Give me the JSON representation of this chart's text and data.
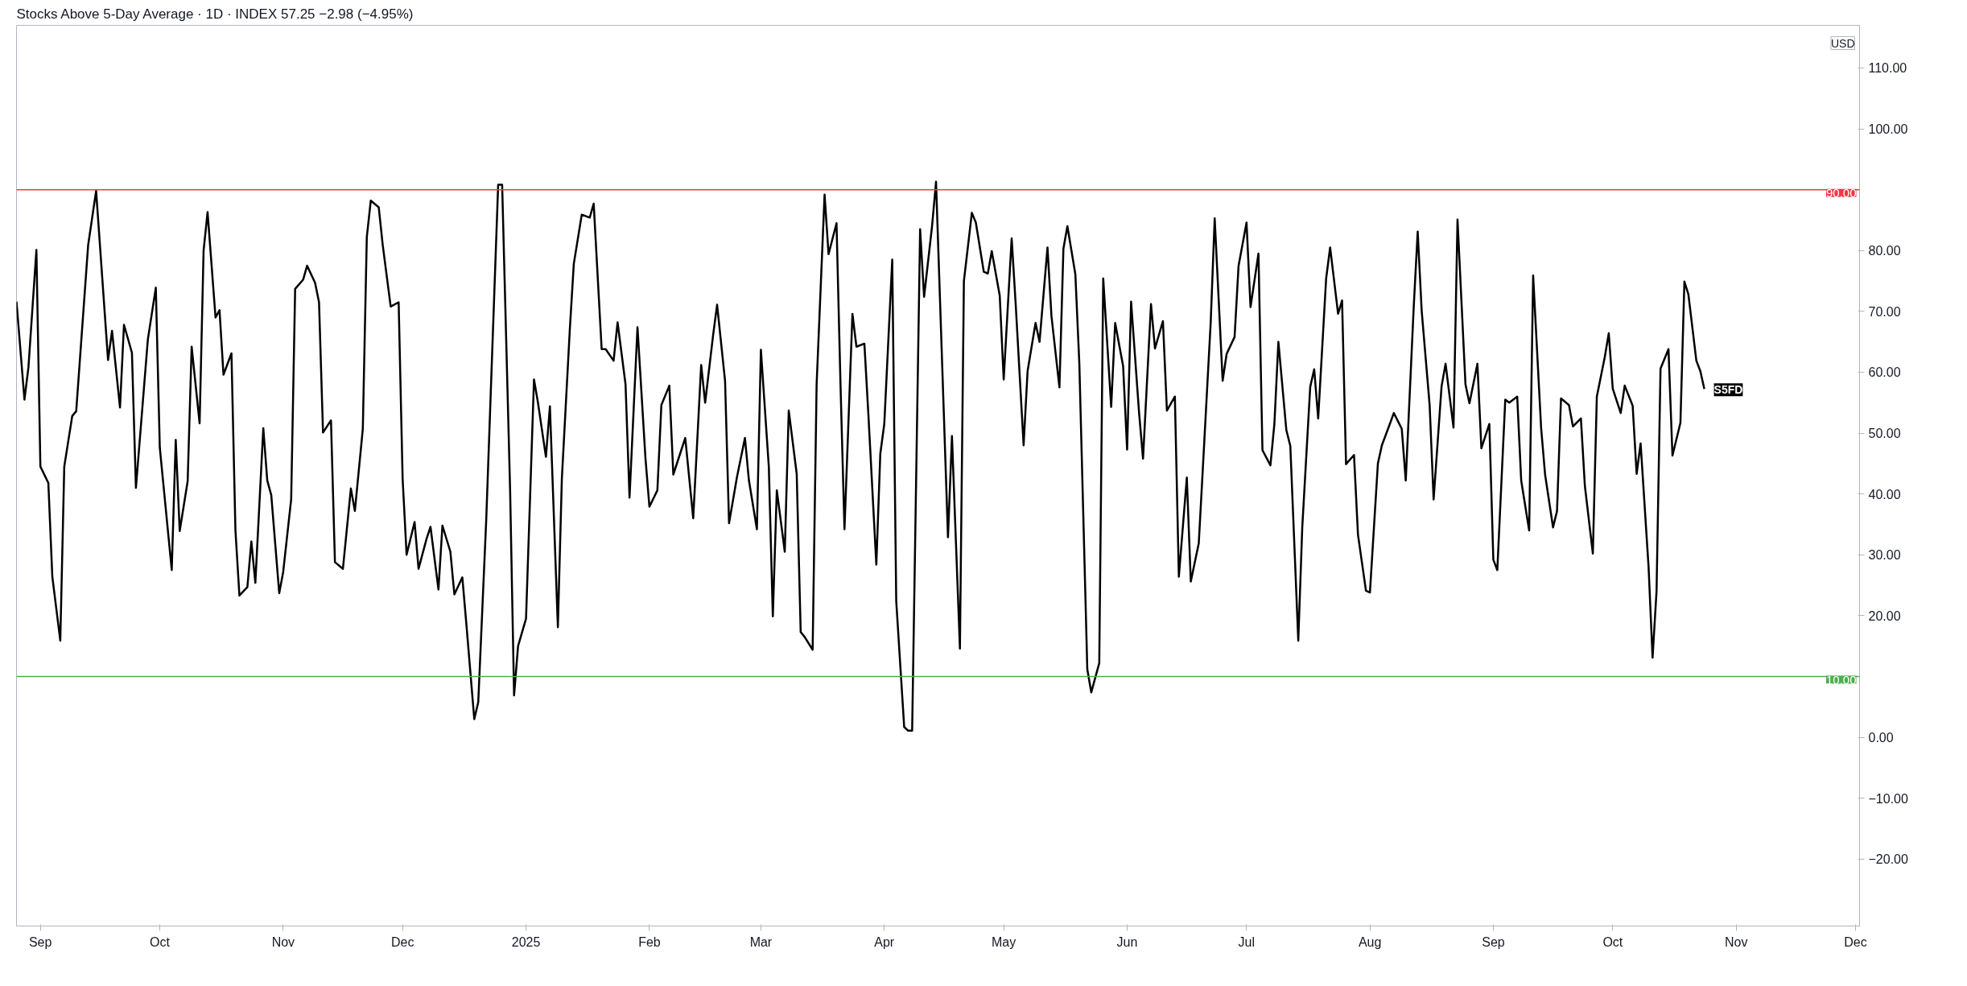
{
  "chart_data": {
    "type": "line",
    "title": "Stocks Above 5-Day Average · 1D · INDEX 57.25 −2.98 (−4.95%)",
    "annotations": [
      "USD",
      {
        "text": "S5FD",
        "x": "2025-10-24",
        "y": 57.25
      }
    ],
    "xlim": [
      "2024-08-26",
      "2025-12-02"
    ],
    "xticks": [
      {
        "value": "2024-09-01",
        "label": "Sep"
      },
      {
        "value": "2024-10-01",
        "label": "Oct"
      },
      {
        "value": "2024-11-01",
        "label": "Nov"
      },
      {
        "value": "2024-12-01",
        "label": "Dec"
      },
      {
        "value": "2025-01-01",
        "label": "2025"
      },
      {
        "value": "2025-02-01",
        "label": "Feb"
      },
      {
        "value": "2025-03-01",
        "label": "Mar"
      },
      {
        "value": "2025-04-01",
        "label": "Apr"
      },
      {
        "value": "2025-05-01",
        "label": "May"
      },
      {
        "value": "2025-06-01",
        "label": "Jun"
      },
      {
        "value": "2025-07-01",
        "label": "Jul"
      },
      {
        "value": "2025-08-01",
        "label": "Aug"
      },
      {
        "value": "2025-09-01",
        "label": "Sep"
      },
      {
        "value": "2025-10-01",
        "label": "Oct"
      },
      {
        "value": "2025-11-01",
        "label": "Nov"
      },
      {
        "value": "2025-12-01",
        "label": "Dec"
      }
    ],
    "ylim": [
      -31,
      117
    ],
    "yticks": [
      {
        "value": -20,
        "label": "−20.00"
      },
      {
        "value": -10,
        "label": "−10.00"
      },
      {
        "value": 0,
        "label": "0.00"
      },
      {
        "value": 20,
        "label": "20.00"
      },
      {
        "value": 30,
        "label": "30.00"
      },
      {
        "value": 40,
        "label": "40.00"
      },
      {
        "value": 50,
        "label": "50.00"
      },
      {
        "value": 60,
        "label": "60.00"
      },
      {
        "value": 70,
        "label": "70.00"
      },
      {
        "value": 80,
        "label": "80.00"
      },
      {
        "value": 100,
        "label": "100.00"
      },
      {
        "value": 110,
        "label": "110.00"
      }
    ],
    "ref_lines": [
      {
        "axis": "y",
        "value": 90,
        "label": "90.00",
        "color": "#f23645"
      },
      {
        "axis": "y",
        "value": 10,
        "label": "10.00",
        "color": "#4caf50"
      }
    ],
    "grid": false,
    "line_style": "solid",
    "x": [
      "2024-08-26",
      "2024-08-28",
      "2024-08-29",
      "2024-08-31",
      "2024-09-01",
      "2024-09-03",
      "2024-09-04",
      "2024-09-06",
      "2024-09-07",
      "2024-09-09",
      "2024-09-10",
      "2024-09-13",
      "2024-09-15",
      "2024-09-18",
      "2024-09-19",
      "2024-09-21",
      "2024-09-22",
      "2024-09-24",
      "2024-09-25",
      "2024-09-28",
      "2024-09-30",
      "2024-10-01",
      "2024-10-04",
      "2024-10-05",
      "2024-10-06",
      "2024-10-08",
      "2024-10-09",
      "2024-10-11",
      "2024-10-12",
      "2024-10-13",
      "2024-10-15",
      "2024-10-16",
      "2024-10-17",
      "2024-10-19",
      "2024-10-20",
      "2024-10-21",
      "2024-10-23",
      "2024-10-24",
      "2024-10-25",
      "2024-10-27",
      "2024-10-28",
      "2024-10-29",
      "2024-10-31",
      "2024-11-01",
      "2024-11-03",
      "2024-11-04",
      "2024-11-06",
      "2024-11-07",
      "2024-11-09",
      "2024-11-10",
      "2024-11-11",
      "2024-11-13",
      "2024-11-14",
      "2024-11-16",
      "2024-11-18",
      "2024-11-19",
      "2024-11-21",
      "2024-11-22",
      "2024-11-23",
      "2024-11-25",
      "2024-11-26",
      "2024-11-28",
      "2024-11-30",
      "2024-12-01",
      "2024-12-02",
      "2024-12-04",
      "2024-12-05",
      "2024-12-07",
      "2024-12-08",
      "2024-12-10",
      "2024-12-11",
      "2024-12-13",
      "2024-12-14",
      "2024-12-16",
      "2024-12-17",
      "2024-12-19",
      "2024-12-20",
      "2024-12-22",
      "2024-12-25",
      "2024-12-26",
      "2024-12-28",
      "2024-12-29",
      "2024-12-30",
      "2025-01-01",
      "2025-01-03",
      "2025-01-04",
      "2025-01-06",
      "2025-01-07",
      "2025-01-09",
      "2025-01-10",
      "2025-01-12",
      "2025-01-13",
      "2025-01-15",
      "2025-01-17",
      "2025-01-18",
      "2025-01-20",
      "2025-01-21",
      "2025-01-23",
      "2025-01-24",
      "2025-01-26",
      "2025-01-27",
      "2025-01-29",
      "2025-01-31",
      "2025-02-01",
      "2025-02-03",
      "2025-02-04",
      "2025-02-06",
      "2025-02-07",
      "2025-02-09",
      "2025-02-10",
      "2025-02-12",
      "2025-02-14",
      "2025-02-15",
      "2025-02-17",
      "2025-02-18",
      "2025-02-20",
      "2025-02-21",
      "2025-02-23",
      "2025-02-25",
      "2025-02-26",
      "2025-02-28",
      "2025-03-01",
      "2025-03-03",
      "2025-03-04",
      "2025-03-05",
      "2025-03-07",
      "2025-03-08",
      "2025-03-10",
      "2025-03-11",
      "2025-03-12",
      "2025-03-14",
      "2025-03-15",
      "2025-03-17",
      "2025-03-18",
      "2025-03-20",
      "2025-03-21",
      "2025-03-22",
      "2025-03-24",
      "2025-03-25",
      "2025-03-27",
      "2025-03-28",
      "2025-03-30",
      "2025-03-31",
      "2025-04-01",
      "2025-04-03",
      "2025-04-04",
      "2025-04-06",
      "2025-04-07",
      "2025-04-08",
      "2025-04-10",
      "2025-04-11",
      "2025-04-13",
      "2025-04-14",
      "2025-04-17",
      "2025-04-18",
      "2025-04-20",
      "2025-04-21",
      "2025-04-23",
      "2025-04-24",
      "2025-04-26",
      "2025-04-27",
      "2025-04-28",
      "2025-04-30",
      "2025-05-01",
      "2025-05-03",
      "2025-05-04",
      "2025-05-06",
      "2025-05-07",
      "2025-05-09",
      "2025-05-10",
      "2025-05-12",
      "2025-05-13",
      "2025-05-15",
      "2025-05-16",
      "2025-05-17",
      "2025-05-19",
      "2025-05-20",
      "2025-05-22",
      "2025-05-23",
      "2025-05-25",
      "2025-05-26",
      "2025-05-28",
      "2025-05-29",
      "2025-05-31",
      "2025-06-01",
      "2025-06-02",
      "2025-06-04",
      "2025-06-05",
      "2025-06-07",
      "2025-06-08",
      "2025-06-10",
      "2025-06-11",
      "2025-06-13",
      "2025-06-14",
      "2025-06-16",
      "2025-06-17",
      "2025-06-19",
      "2025-06-20",
      "2025-06-22",
      "2025-06-23",
      "2025-06-25",
      "2025-06-26",
      "2025-06-28",
      "2025-06-29",
      "2025-07-01",
      "2025-07-02",
      "2025-07-04",
      "2025-07-05",
      "2025-07-07",
      "2025-07-08",
      "2025-07-09",
      "2025-07-11",
      "2025-07-12",
      "2025-07-14",
      "2025-07-15",
      "2025-07-17",
      "2025-07-18",
      "2025-07-19",
      "2025-07-21",
      "2025-07-22",
      "2025-07-24",
      "2025-07-25",
      "2025-07-26",
      "2025-07-28",
      "2025-07-29",
      "2025-07-31",
      "2025-08-01",
      "2025-08-03",
      "2025-08-04",
      "2025-08-06",
      "2025-08-07",
      "2025-08-09",
      "2025-08-10",
      "2025-08-12",
      "2025-08-13",
      "2025-08-14",
      "2025-08-16",
      "2025-08-17",
      "2025-08-19",
      "2025-08-20",
      "2025-08-22",
      "2025-08-23",
      "2025-08-25",
      "2025-08-26",
      "2025-08-28",
      "2025-08-29",
      "2025-08-31",
      "2025-09-01",
      "2025-09-02",
      "2025-09-04",
      "2025-09-05",
      "2025-09-07",
      "2025-09-08",
      "2025-09-10",
      "2025-09-11",
      "2025-09-13",
      "2025-09-14",
      "2025-09-16",
      "2025-09-17",
      "2025-09-18",
      "2025-09-20",
      "2025-09-21",
      "2025-09-23",
      "2025-09-24",
      "2025-09-26",
      "2025-09-27",
      "2025-09-29",
      "2025-09-30",
      "2025-10-01",
      "2025-10-03",
      "2025-10-04",
      "2025-10-06",
      "2025-10-07",
      "2025-10-08",
      "2025-10-10",
      "2025-10-11",
      "2025-10-12",
      "2025-10-13",
      "2025-10-15",
      "2025-10-16",
      "2025-10-18",
      "2025-10-19",
      "2025-10-20",
      "2025-10-22",
      "2025-10-23",
      "2025-10-24"
    ],
    "series": [
      {
        "color": "#000000",
        "values": [
          71.6,
          55.5,
          60.8,
          80.1,
          44.5,
          41.8,
          26.4,
          15.9,
          44.5,
          52.8,
          53.6,
          80.9,
          89.8,
          62.0,
          66.8,
          54.2,
          67.8,
          63.2,
          41.0,
          65.4,
          73.9,
          47.6,
          27.5,
          48.9,
          33.9,
          42.1,
          64.2,
          51.6,
          80.0,
          86.3,
          69.0,
          70.2,
          59.6,
          63.1,
          34.0,
          23.3,
          24.7,
          32.2,
          25.4,
          50.8,
          42.2,
          39.8,
          23.7,
          27.2,
          39.1,
          73.7,
          75.2,
          77.5,
          74.7,
          71.5,
          50.1,
          52.1,
          28.8,
          27.7,
          40.9,
          37.2,
          50.7,
          82.2,
          88.2,
          87.1,
          80.9,
          70.8,
          71.5,
          42.5,
          30.0,
          35.4,
          27.7,
          32.6,
          34.6,
          24.3,
          34.8,
          30.5,
          23.5,
          26.3,
          18.7,
          3.0,
          5.8,
          35.7,
          90.8,
          90.8,
          40.7,
          6.9,
          15.0,
          19.5,
          58.8,
          55.0,
          46.1,
          54.4,
          18.1,
          42.5,
          67.0,
          77.8,
          85.9,
          85.4,
          87.7,
          63.8,
          63.8,
          61.9,
          68.2,
          58.0,
          39.4,
          67.4,
          45.9,
          37.9,
          40.6,
          54.6,
          57.8,
          43.2,
          47.2,
          49.2,
          36.0,
          61.2,
          55.0,
          66.1,
          71.1,
          58.6,
          35.2,
          42.8,
          49.2,
          42.2,
          34.2,
          63.7,
          44.4,
          19.9,
          40.6,
          30.5,
          53.7,
          43.3,
          17.3,
          16.5,
          14.4,
          58.0,
          89.2,
          79.4,
          84.5,
          58.0,
          34.2,
          69.6,
          64.2,
          64.7,
          53.1,
          28.4,
          46.6,
          51.5,
          78.5,
          22.4,
          1.7,
          1.1,
          1.1,
          83.5,
          72.4,
          84.0,
          91.3,
          32.9,
          49.5,
          14.6,
          75.0,
          86.2,
          84.6,
          76.5,
          76.2,
          79.9,
          72.6,
          58.8,
          82.0,
          71.3,
          48.0,
          60.2,
          68.1,
          65.0,
          80.5,
          69.2,
          57.5,
          80.3,
          84.0,
          76.1,
          61.4,
          11.2,
          7.4,
          12.2,
          75.4,
          54.3,
          68.1,
          61.0,
          47.3,
          71.6,
          53.4,
          45.8,
          71.2,
          63.9,
          68.4,
          53.7,
          56.0,
          26.4,
          42.7,
          25.6,
          31.9,
          43.9,
          68.2,
          85.3,
          58.6,
          63.0,
          65.8,
          77.5,
          84.6,
          70.7,
          79.5,
          47.2,
          44.7,
          51.5,
          65.0,
          50.5,
          47.9,
          15.9,
          34.5,
          57.6,
          60.5,
          52.4,
          75.4,
          80.5,
          69.6,
          71.8,
          44.9,
          46.4,
          33.3,
          24.1,
          23.8,
          45.0,
          48.0,
          51.5,
          53.3,
          50.7,
          42.2,
          70.7,
          83.1,
          70.1,
          54.6,
          39.1,
          57.7,
          61.4,
          50.9,
          85.1,
          58.0,
          54.9,
          61.4,
          47.5,
          51.5,
          29.2,
          27.5,
          55.5,
          55.0,
          56.0,
          42.2,
          34.0,
          75.9,
          50.9,
          43.2,
          34.5,
          37.2,
          55.7,
          54.6,
          51.1,
          52.4,
          41.3,
          30.2,
          56.0,
          62.5,
          66.4,
          57.3,
          53.3,
          57.8,
          54.5,
          43.3,
          48.3,
          28.0,
          13.1,
          24.0,
          60.6,
          63.8,
          46.3,
          51.7,
          74.9,
          72.8,
          61.9,
          60.2,
          57.25
        ]
      }
    ]
  }
}
